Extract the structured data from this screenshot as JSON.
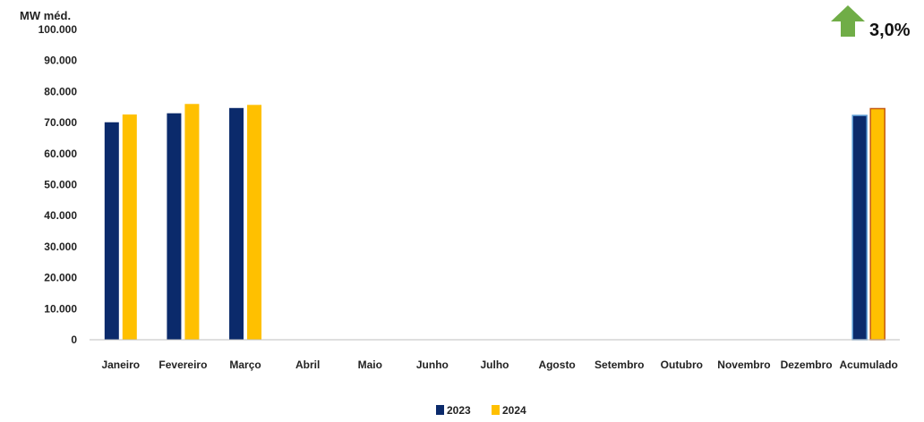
{
  "chart_data": {
    "type": "bar",
    "title": "",
    "ylabel": "MW méd.",
    "xlabel": "",
    "ylim": [
      0,
      100000
    ],
    "yticks": [
      "0",
      "10.000",
      "20.000",
      "30.000",
      "40.000",
      "50.000",
      "60.000",
      "70.000",
      "80.000",
      "90.000",
      "100.000"
    ],
    "categories": [
      "Janeiro",
      "Fevereiro",
      "Março",
      "Abril",
      "Maio",
      "Junho",
      "Julho",
      "Agosto",
      "Setembro",
      "Outubro",
      "Novembro",
      "Dezembro",
      "Acumulado"
    ],
    "series": [
      {
        "name": "2023",
        "color": "#0b2a6b",
        "values": [
          70100,
          73000,
          74700,
          null,
          null,
          null,
          null,
          null,
          null,
          null,
          null,
          null,
          72300
        ]
      },
      {
        "name": "2024",
        "color": "#ffc000",
        "values": [
          72600,
          76000,
          75700,
          null,
          null,
          null,
          null,
          null,
          null,
          null,
          null,
          null,
          74500
        ]
      }
    ],
    "legend": "bottom-center",
    "grid": false
  },
  "growth_indicator": {
    "value": "3,0%",
    "direction": "up",
    "icon": "up-arrow-icon",
    "color": "#70ad47"
  }
}
